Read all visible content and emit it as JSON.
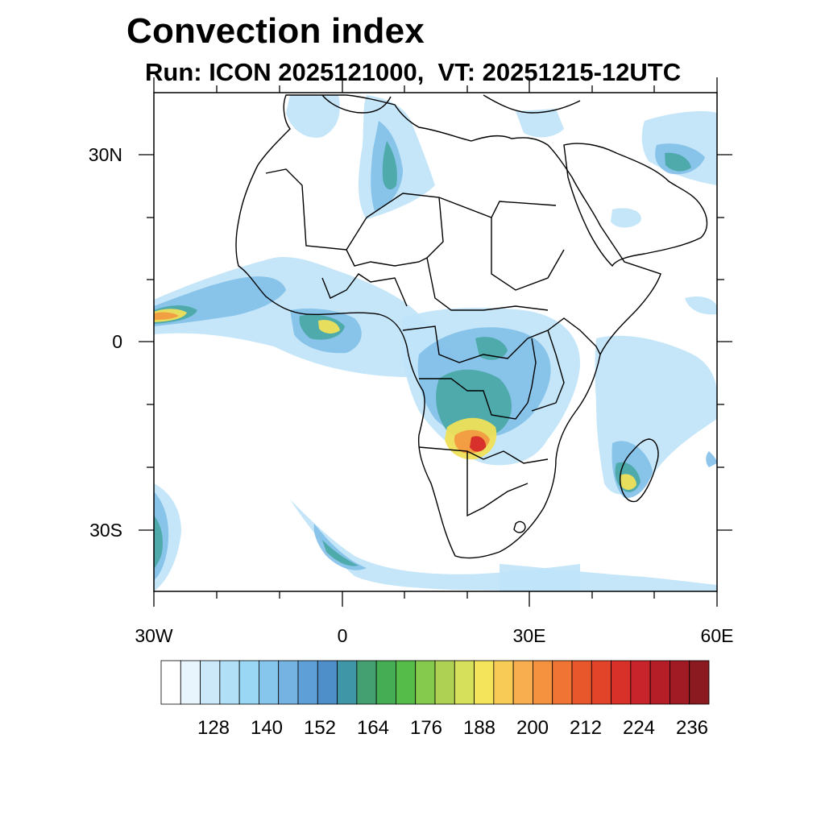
{
  "title": "Convection index",
  "subtitle": "Run: ICON 2025121000,  VT: 20251215-12UTC",
  "map": {
    "lat_labels": [
      "30N",
      "0",
      "30S"
    ],
    "lon_labels": [
      "30W",
      "0",
      "30E",
      "60E"
    ]
  },
  "colorbar": {
    "labels": [
      "128",
      "140",
      "152",
      "164",
      "176",
      "188",
      "200",
      "212",
      "224",
      "236"
    ],
    "colors": [
      "#ffffff",
      "#e8f5fc",
      "#cbe9f8",
      "#b1e0f6",
      "#9ad7f4",
      "#86c6ec",
      "#74b3e2",
      "#5d9fd6",
      "#4e8fca",
      "#3f96a6",
      "#44a070",
      "#45ae55",
      "#55bb49",
      "#85c94d",
      "#aed154",
      "#d6e05b",
      "#f4e45c",
      "#f8ca56",
      "#f8ad4f",
      "#f5923f",
      "#f07433",
      "#e8572b",
      "#e14428",
      "#d83129",
      "#c8242b",
      "#b51e27",
      "#a01b23",
      "#8a1a1f"
    ]
  },
  "colors": {
    "light_blue": "#bfe3f8",
    "mid_blue": "#7cbce8",
    "teal": "#45a6a0",
    "green": "#48b058",
    "yellow": "#f0e05a",
    "orange": "#f29a40",
    "red": "#d8302a"
  }
}
